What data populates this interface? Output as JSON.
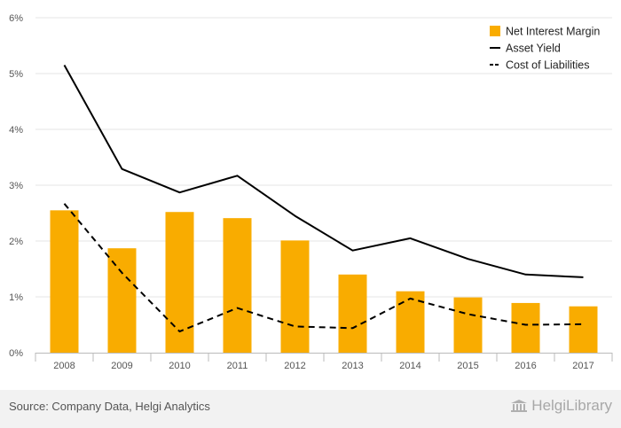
{
  "chart_data": {
    "type": "bar",
    "categories": [
      "2008",
      "2009",
      "2010",
      "2011",
      "2012",
      "2013",
      "2014",
      "2015",
      "2016",
      "2017"
    ],
    "series": [
      {
        "name": "Net Interest Margin",
        "kind": "bar",
        "color": "#f9ac00",
        "values": [
          2.55,
          1.87,
          2.52,
          2.41,
          2.01,
          1.4,
          1.1,
          0.99,
          0.89,
          0.83
        ]
      },
      {
        "name": "Asset Yield",
        "kind": "line",
        "style": "solid",
        "color": "#000000",
        "values": [
          5.15,
          3.29,
          2.87,
          3.17,
          2.45,
          1.83,
          2.05,
          1.68,
          1.4,
          1.35
        ]
      },
      {
        "name": "Cost of Liabilities",
        "kind": "line",
        "style": "dashed",
        "color": "#000000",
        "values": [
          2.67,
          1.43,
          0.38,
          0.8,
          0.47,
          0.44,
          0.97,
          0.69,
          0.5,
          0.51
        ]
      }
    ],
    "y_ticks": [
      "0%",
      "1%",
      "2%",
      "3%",
      "4%",
      "5%",
      "6%"
    ],
    "ylim": [
      0,
      6
    ],
    "grid": true,
    "legend_position": "top-right"
  },
  "footer": {
    "source": "Source: Company Data, Helgi Analytics",
    "brand_logo": "HelgiLibrary",
    "brand_icon": "library-building-icon"
  }
}
